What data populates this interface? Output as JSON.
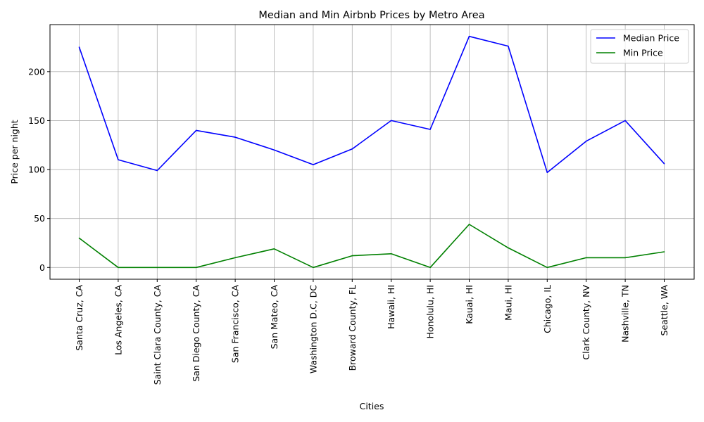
{
  "chart_data": {
    "type": "line",
    "title": "Median and Min Airbnb Prices by Metro Area",
    "xlabel": "Cities",
    "ylabel": "Price per night",
    "categories": [
      "Santa Cruz, CA",
      "Los Angeles, CA",
      "Saint Clara County, CA",
      "San Diego County, CA",
      "San Francisco, CA",
      "San Mateo, CA",
      "Washington D.C, DC",
      "Broward County, FL",
      "Hawaii, HI",
      "Honolulu, HI",
      "Kauai, HI",
      "Maui, HI",
      "Chicago, IL",
      "Clark County, NV",
      "Nashville, TN",
      "Seattle, WA"
    ],
    "series": [
      {
        "name": "Median Price",
        "color": "#0000ff",
        "values": [
          225,
          110,
          99,
          140,
          133,
          120,
          105,
          121,
          150,
          141,
          236,
          226,
          97,
          129,
          150,
          106
        ]
      },
      {
        "name": "Min Price",
        "color": "#008000",
        "values": [
          30,
          0,
          0,
          0,
          10,
          19,
          0,
          12,
          14,
          0,
          44,
          20,
          0,
          10,
          10,
          16
        ]
      }
    ],
    "ylim": [
      -12,
      248
    ],
    "yticks": [
      0,
      50,
      100,
      150,
      200
    ],
    "grid": true,
    "legend": "top-right"
  }
}
